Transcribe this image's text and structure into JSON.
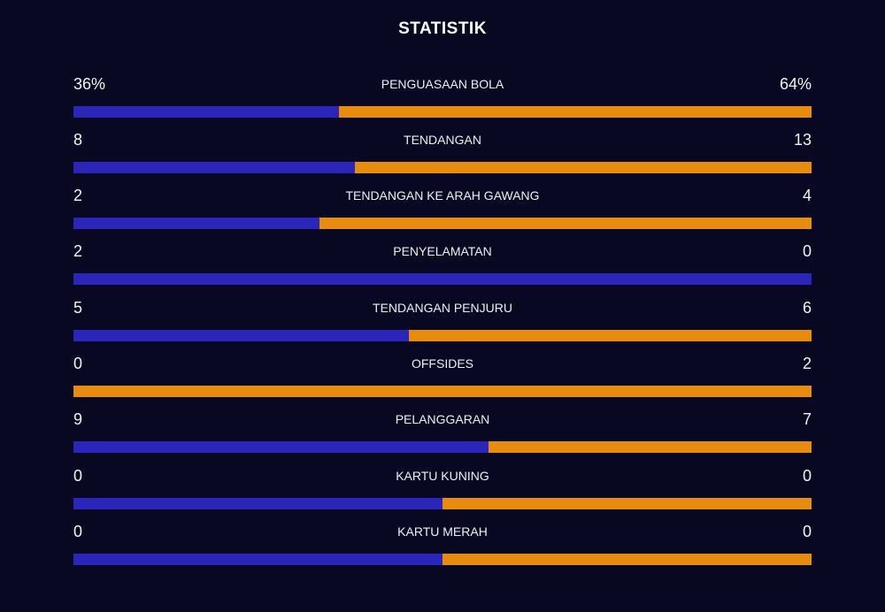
{
  "title": "STATISTIK",
  "colors": {
    "background": "#090823",
    "home": "#2b25b9",
    "away": "#e88c10"
  },
  "stats": [
    {
      "label": "PENGUASAAN BOLA",
      "home": "36%",
      "away": "64%",
      "home_share": 0.36
    },
    {
      "label": "TENDANGAN",
      "home": "8",
      "away": "13",
      "home_share": 0.381
    },
    {
      "label": "TENDANGAN KE ARAH GAWANG",
      "home": "2",
      "away": "4",
      "home_share": 0.333
    },
    {
      "label": "PENYELAMATAN",
      "home": "2",
      "away": "0",
      "home_share": 1.0
    },
    {
      "label": "TENDANGAN PENJURU",
      "home": "5",
      "away": "6",
      "home_share": 0.455
    },
    {
      "label": "OFFSIDES",
      "home": "0",
      "away": "2",
      "home_share": 0.0
    },
    {
      "label": "PELANGGARAN",
      "home": "9",
      "away": "7",
      "home_share": 0.5625
    },
    {
      "label": "KARTU KUNING",
      "home": "0",
      "away": "0",
      "home_share": 0.5
    },
    {
      "label": "KARTU MERAH",
      "home": "0",
      "away": "0",
      "home_share": 0.5
    }
  ]
}
